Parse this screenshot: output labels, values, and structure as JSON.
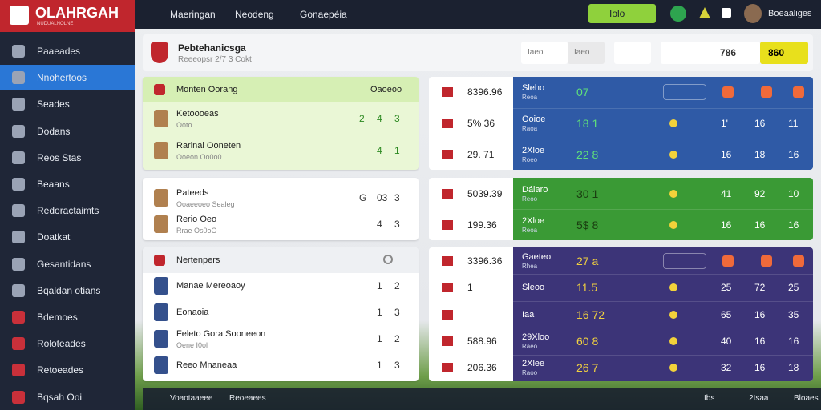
{
  "sidebar": {
    "brand": "OLAHRGAH",
    "brand_sub": "NUDUALNOLNE",
    "active_item": 1,
    "items": [
      "Paaeades",
      "Nnohertoos",
      "Seades",
      "Dodans",
      "Reos Stas",
      "Beaans",
      "Redoractaimts",
      "Doatkat",
      "Gesantidans",
      "Bqaldan otians",
      "Bdemoes",
      "Roloteades",
      "Retoeades",
      "Bqsah Ooi"
    ]
  },
  "topbar": {
    "tabs": [
      "Maeringan",
      "Neodeng",
      "Gonaepéia"
    ],
    "button": "Iolo",
    "user": "Boeaaliges"
  },
  "header": {
    "title": "Pebtehanicsga",
    "subtitle": "Reeeopsr 2/7 3 Cokt",
    "search": "Iaeo",
    "filter": "Iaeo",
    "score": "786",
    "score2": "860"
  },
  "cards": [
    {
      "title": "Monten Oorang",
      "aside": "Oaoeoo",
      "rows": [
        {
          "name": "Ketoooeas",
          "sub": "Ooto",
          "values": [
            "2",
            "4",
            "3"
          ]
        },
        {
          "name": "Rarinal Ooneten",
          "sub": "Ooeon Oo0o0",
          "values": [
            "4",
            "1"
          ]
        }
      ]
    },
    {
      "rows": [
        {
          "name": "Pateeds",
          "sub": "Ooaeeoeo Sealeg",
          "values": [
            "G",
            "03",
            "3"
          ]
        },
        {
          "name": "Rerio Oeo",
          "sub": "Rrae Os0oO",
          "values": [
            "4",
            "3"
          ]
        }
      ]
    },
    {
      "title": "Nertenpers",
      "rows": [
        {
          "name": "Manae Mereoaoy",
          "values": [
            "1",
            "2"
          ]
        },
        {
          "name": "Eonaoia",
          "values": [
            "1",
            "3"
          ]
        },
        {
          "name": "Feleto Gora Sooneeon",
          "sub": "Oene I0ol",
          "values": [
            "1",
            "2"
          ]
        },
        {
          "name": "Reeo Mnaneaa",
          "values": [
            "1",
            "3"
          ]
        }
      ]
    }
  ],
  "tables": [
    {
      "color": "#2f5aa6",
      "rows": [
        {
          "value": "8396.96",
          "label": "Sleho",
          "sub": "Reoa",
          "stat": "07",
          "cols": []
        },
        {
          "value": "5% 36",
          "label": "Ooioe",
          "sub": "Raoa",
          "stat": "18 1",
          "cols": [
            "1'",
            "16",
            "11"
          ]
        },
        {
          "value": "29. 71",
          "label": "2Xloe",
          "sub": "Roeo",
          "stat": "22 8",
          "cols": [
            "16",
            "18",
            "16"
          ]
        }
      ]
    },
    {
      "color": "#3a9a35",
      "rows": [
        {
          "value": "5039.39",
          "label": "Dáiaro",
          "sub": "Reoo",
          "stat": "30 1",
          "cols": [
            "41",
            "92",
            "10"
          ]
        },
        {
          "value": "199.36",
          "label": "2Xloe",
          "sub": "Reoa",
          "stat": "5$ 8",
          "cols": [
            "16",
            "16",
            "16"
          ]
        }
      ]
    },
    {
      "color": "#3c3478",
      "rows": [
        {
          "value": "3396.36",
          "label": "Gaeteo",
          "sub": "Rhea",
          "stat": "27 a",
          "cols": []
        },
        {
          "value": "1",
          "label": "Sleoo",
          "stat": "11.5",
          "cols": [
            "25",
            "72",
            "25"
          ]
        },
        {
          "label": "Iaa",
          "stat": "16 72",
          "cols": [
            "65",
            "16",
            "35"
          ]
        },
        {
          "value": "588.96",
          "label": "29Xloo",
          "sub": "Raeo",
          "stat": "60 8",
          "cols": [
            "40",
            "16",
            "16"
          ]
        },
        {
          "value": "206.36",
          "label": "2Xlee",
          "sub": "Raoo",
          "stat": "26 7",
          "cols": [
            "32",
            "16",
            "18"
          ]
        }
      ]
    }
  ],
  "footer": {
    "left": [
      "Voaotaaeee",
      "Reoeaees"
    ],
    "right": [
      "Ibs",
      "2Isaa",
      "Bloaes"
    ]
  }
}
